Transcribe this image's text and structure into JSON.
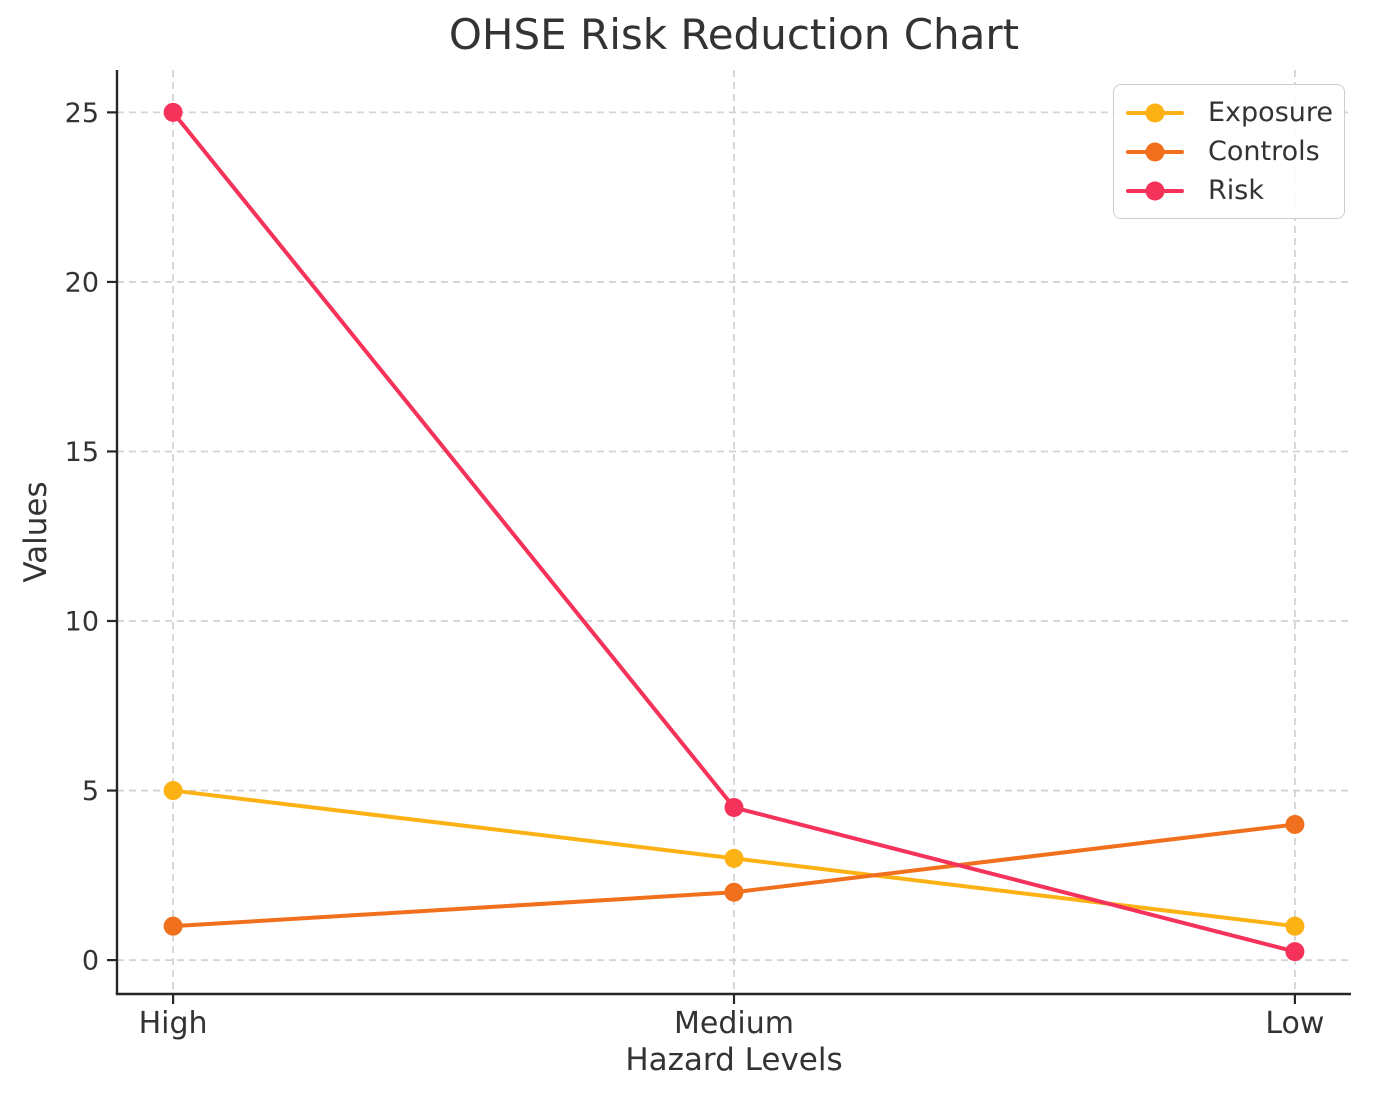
{
  "chart_data": {
    "type": "line",
    "title": "OHSE Risk Reduction Chart",
    "xlabel": "Hazard Levels",
    "ylabel": "Values",
    "categories": [
      "High",
      "Medium",
      "Low"
    ],
    "y_ticks": [
      0,
      5,
      10,
      15,
      20,
      25
    ],
    "ylim": [
      -1,
      26.25
    ],
    "grid": true,
    "grid_style": "dashed",
    "legend_position": "upper right",
    "series": [
      {
        "name": "Exposure",
        "color": "#FCB214",
        "values": [
          5,
          3,
          1
        ]
      },
      {
        "name": "Controls",
        "color": "#F0701E",
        "values": [
          1,
          2,
          4
        ]
      },
      {
        "name": "Risk",
        "color": "#F4325A",
        "values": [
          25,
          4.5,
          0.25
        ]
      }
    ]
  },
  "colors": {
    "background": "#FFFFFF",
    "grid": "#D3D3D3",
    "spine": "#262626",
    "tick_text": "#333333",
    "legend_border": "#CDCDCD"
  }
}
